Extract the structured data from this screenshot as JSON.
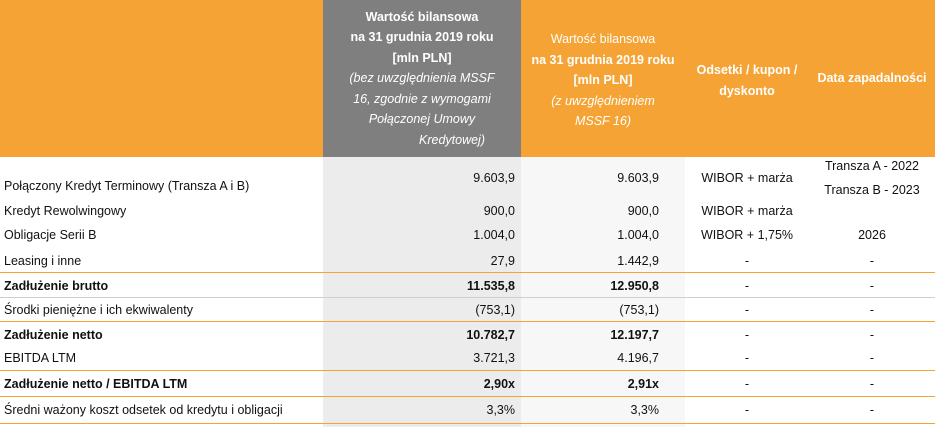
{
  "header": {
    "col1": {
      "line1": "Wartość bilansowa",
      "line2": "na 31 grudnia 2019 roku",
      "line3": "[mln PLN]",
      "note1": "(bez uwzględnienia MSSF",
      "note2": "16, zgodnie z wymogami",
      "note3": "Połączonej Umowy",
      "note4": "Kredytowej)"
    },
    "col2": {
      "line1": "Wartość bilansowa",
      "line2": "na 31 grudnia 2019 roku",
      "line3": "[mln PLN]",
      "note1": "(z uwzględnieniem",
      "note2": "MSSF 16)"
    },
    "col3": {
      "line1": "Odsetki / kupon /",
      "line2": "dyskonto"
    },
    "col4": {
      "line1": "Data zapadalności"
    }
  },
  "rows": [
    {
      "label": "Połączony Kredyt Terminowy (Transza A i B)",
      "v1": "9.603,9",
      "v2": "9.603,9",
      "v3": "WIBOR + marża",
      "v4a": "Transza A - 2022",
      "v4b": "Transza B - 2023"
    },
    {
      "label": "Kredyt Rewolwingowy",
      "v1": "900,0",
      "v2": "900,0",
      "v3": "WIBOR + marża",
      "v4": ""
    },
    {
      "label": "Obligacje Serii B",
      "v1": "1.004,0",
      "v2": "1.004,0",
      "v3": "WIBOR + 1,75%",
      "v4": "2026"
    },
    {
      "label": "Leasing i inne",
      "v1": "27,9",
      "v2": "1.442,9",
      "v3": "-",
      "v4": "-"
    },
    {
      "label": "Zadłużenie brutto",
      "v1": "11.535,8",
      "v2": "12.950,8",
      "v3": "-",
      "v4": "-"
    },
    {
      "label": "Środki pieniężne i ich ekwiwalenty",
      "v1": "(753,1)",
      "v2": "(753,1)",
      "v3": "-",
      "v4": "-"
    },
    {
      "label": "Zadłużenie netto",
      "v1": "10.782,7",
      "v2": "12.197,7",
      "v3": "-",
      "v4": "-"
    },
    {
      "label": "EBITDA LTM",
      "v1": "3.721,3",
      "v2": "4.196,7",
      "v3": "-",
      "v4": "-"
    },
    {
      "label": "Zadłużenie netto / EBITDA LTM",
      "v1": "2,90x",
      "v2": "2,91x",
      "v3": "-",
      "v4": "-"
    },
    {
      "label": "Średni ważony koszt odsetek od kredytu i obligacji",
      "v1": "3,3%",
      "v2": "3,3%",
      "v3": "-",
      "v4": "-"
    }
  ],
  "colors": {
    "accent": "#f5a335",
    "header_gray": "#7f7f7f",
    "col_gray": "#ececec"
  }
}
